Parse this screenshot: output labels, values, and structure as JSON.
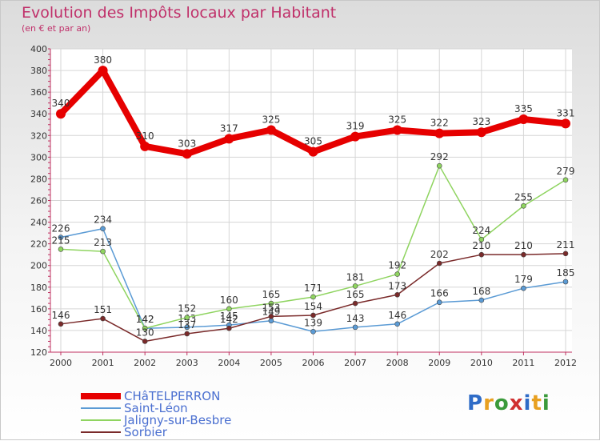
{
  "title": "Evolution des Impôts locaux par Habitant",
  "subtitle": "(en € et par an)",
  "logo_letters": [
    "P",
    "r",
    "o",
    "x",
    "i",
    "t",
    "i"
  ],
  "logo_colors": [
    "#2f6cc7",
    "#e8a020",
    "#3a9a3a",
    "#d03030",
    "#2f6cc7",
    "#e8a020",
    "#3a9a3a"
  ],
  "chart_data": {
    "type": "line",
    "title": "Evolution des Impôts locaux par Habitant",
    "subtitle": "(en € et par an)",
    "xlabel": "",
    "ylabel": "",
    "categories": [
      "2000",
      "2001",
      "2002",
      "2003",
      "2004",
      "2005",
      "2006",
      "2007",
      "2008",
      "2009",
      "2010",
      "2011",
      "2012"
    ],
    "ylim": [
      120,
      400
    ],
    "yticks": [
      120,
      140,
      160,
      180,
      200,
      220,
      240,
      260,
      280,
      300,
      320,
      340,
      360,
      380,
      400
    ],
    "grid": true,
    "legend_position": "bottom-left",
    "series": [
      {
        "name": "CHâTELPERRON",
        "color": "#e60000",
        "values": [
          340,
          380,
          310,
          303,
          317,
          325,
          305,
          319,
          325,
          322,
          323,
          335,
          331
        ]
      },
      {
        "name": "Saint-Léon",
        "color": "#5b9bd5",
        "values": [
          226,
          234,
          142,
          143,
          145,
          149,
          139,
          143,
          146,
          166,
          168,
          179,
          185
        ]
      },
      {
        "name": "Jaligny-sur-Besbre",
        "color": "#8fd460",
        "values": [
          215,
          213,
          142,
          152,
          160,
          165,
          171,
          181,
          192,
          292,
          224,
          255,
          279
        ]
      },
      {
        "name": "Sorbier",
        "color": "#7a2a2a",
        "values": [
          146,
          151,
          130,
          137,
          142,
          153,
          154,
          165,
          173,
          202,
          210,
          210,
          211
        ]
      }
    ]
  }
}
